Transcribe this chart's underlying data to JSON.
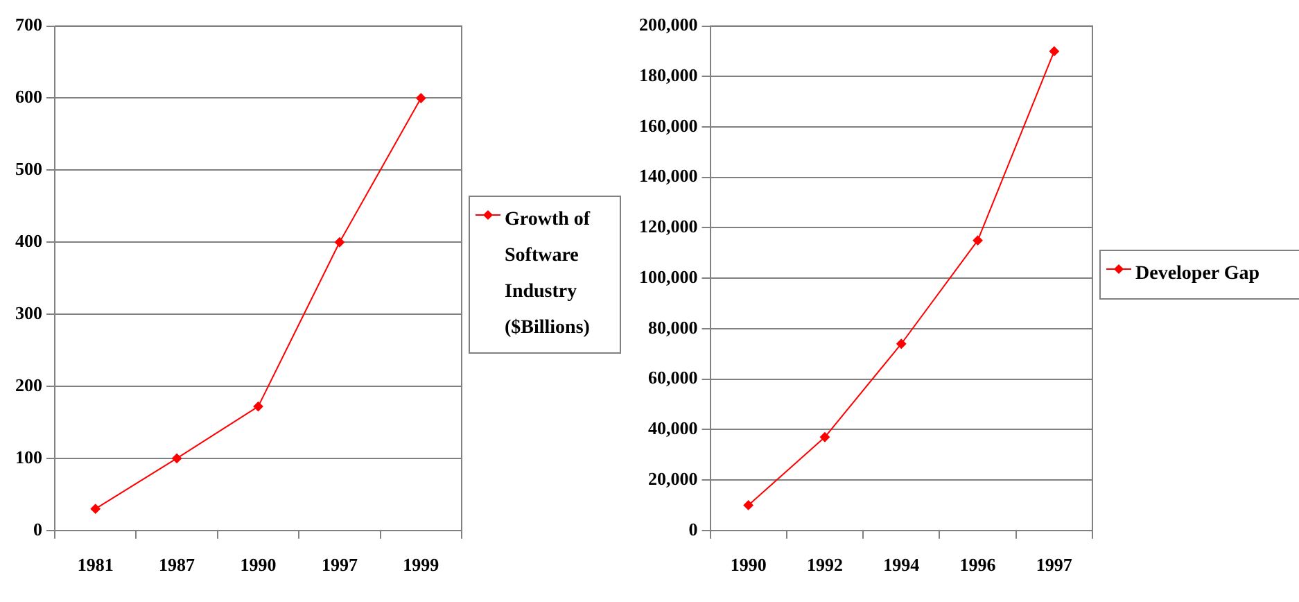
{
  "chart_data": [
    {
      "type": "line",
      "categories": [
        "1981",
        "1987",
        "1990",
        "1997",
        "1999"
      ],
      "series": [
        {
          "name": "Growth of Software Industry ($Billions)",
          "color": "#ff0000",
          "values": [
            30,
            100,
            172,
            400,
            600
          ]
        }
      ],
      "ylim": [
        0,
        700
      ],
      "yticks": [
        0,
        100,
        200,
        300,
        400,
        500,
        600,
        700
      ],
      "grid": "y",
      "legend": "right",
      "marker": "diamond",
      "line_style": "solid"
    },
    {
      "type": "line",
      "categories": [
        "1990",
        "1992",
        "1994",
        "1996",
        "1997"
      ],
      "series": [
        {
          "name": "Developer Gap",
          "color": "#ff0000",
          "values": [
            10000,
            37000,
            74000,
            115000,
            190000
          ]
        }
      ],
      "ylim": [
        0,
        200000
      ],
      "yticks": [
        {
          "value": 0,
          "label": "0"
        },
        {
          "value": 20000,
          "label": "20,000"
        },
        {
          "value": 40000,
          "label": "40,000"
        },
        {
          "value": 60000,
          "label": "60,000"
        },
        {
          "value": 80000,
          "label": "80,000"
        },
        {
          "value": 100000,
          "label": "100,000"
        },
        {
          "value": 120000,
          "label": "120,000"
        },
        {
          "value": 140000,
          "label": "140,000"
        },
        {
          "value": 160000,
          "label": "160,000"
        },
        {
          "value": 180000,
          "label": "180,000"
        },
        {
          "value": 200000,
          "label": "200,000"
        }
      ],
      "grid": "y",
      "legend": "right",
      "marker": "diamond",
      "line_style": "solid"
    }
  ]
}
